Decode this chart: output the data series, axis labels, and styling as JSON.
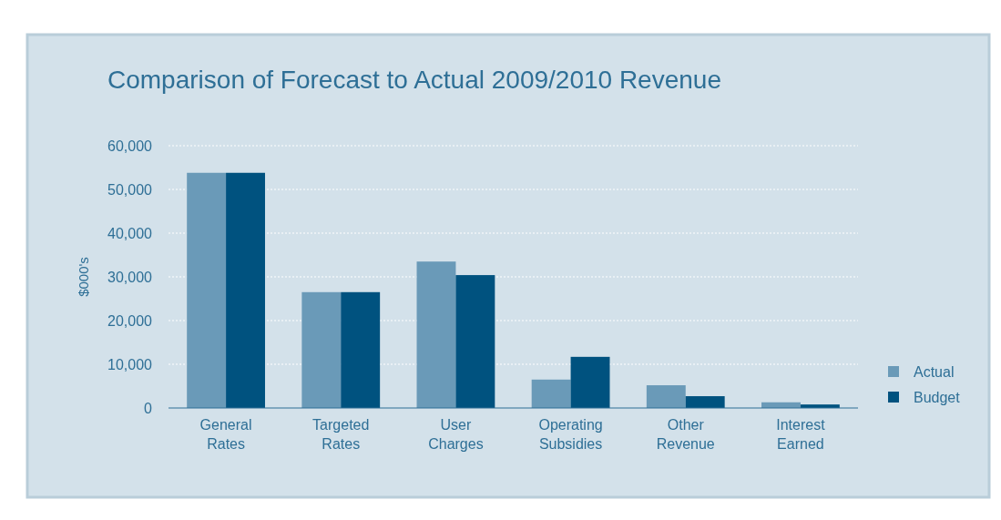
{
  "chart_data": {
    "type": "bar",
    "title": "Comparison of Forecast to Actual 2009/2010 Revenue",
    "ylabel": "$000's",
    "categories": [
      "General Rates",
      "Targeted Rates",
      "User Charges",
      "Operating Subsidies",
      "Other Revenue",
      "Interest Earned"
    ],
    "series": [
      {
        "name": "Actual",
        "color": "#6a9ab8",
        "values": [
          53800,
          26500,
          33500,
          6500,
          5200,
          1300
        ]
      },
      {
        "name": "Budget",
        "color": "#00527f",
        "values": [
          53800,
          26500,
          30400,
          11700,
          2700,
          800
        ]
      }
    ],
    "ylim": [
      0,
      60000
    ],
    "yticks": [
      0,
      {
        "value": 10000,
        "label": "10,000"
      },
      {
        "value": 20000,
        "label": "20,000"
      },
      {
        "value": 30000,
        "label": "30,000"
      },
      {
        "value": 40000,
        "label": "40,000"
      },
      {
        "value": 50000,
        "label": "50,000"
      },
      {
        "value": 60000,
        "label": "60,000"
      }
    ],
    "grid": "y",
    "legend": "right"
  }
}
